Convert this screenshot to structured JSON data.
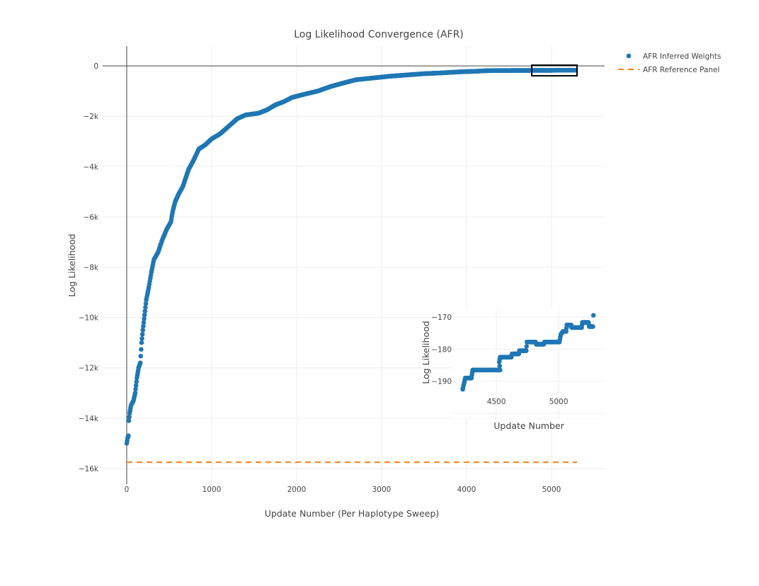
{
  "chart_data": [
    {
      "type": "scatter",
      "title": "Log Likelihood Convergence (AFR)",
      "xlabel": "Update Number (Per Haplotype Sweep)",
      "ylabel": "Log Likelihood",
      "xlim": [
        -283,
        5625
      ],
      "ylim": [
        -16620,
        790
      ],
      "xticks": [
        0,
        1000,
        2000,
        3000,
        4000,
        5000
      ],
      "xtick_labels": [
        "0",
        "1000",
        "2000",
        "3000",
        "4000",
        "5000"
      ],
      "yticks": [
        0,
        -2000,
        -4000,
        -6000,
        -8000,
        -10000,
        -12000,
        -14000,
        -16000
      ],
      "ytick_labels": [
        "0",
        "−2k",
        "−4k",
        "−6k",
        "−8k",
        "−10k",
        "−12k",
        "−14k",
        "−16k"
      ],
      "grid": true,
      "legend_position": "top-right",
      "series": [
        {
          "name": "AFR Inferred Weights",
          "mode": "markers",
          "color": "#1f77b4",
          "points": [
            [
              0,
              -15000
            ],
            [
              10,
              -14800
            ],
            [
              20,
              -14700
            ],
            [
              25,
              -14100
            ],
            [
              35,
              -13800
            ],
            [
              50,
              -13500
            ],
            [
              80,
              -13300
            ],
            [
              100,
              -13000
            ],
            [
              120,
              -12400
            ],
            [
              140,
              -12000
            ],
            [
              160,
              -11800
            ],
            [
              175,
              -11000
            ],
            [
              190,
              -10500
            ],
            [
              210,
              -9900
            ],
            [
              230,
              -9300
            ],
            [
              260,
              -8800
            ],
            [
              290,
              -8200
            ],
            [
              320,
              -7700
            ],
            [
              370,
              -7400
            ],
            [
              420,
              -6900
            ],
            [
              470,
              -6500
            ],
            [
              520,
              -6200
            ],
            [
              540,
              -5800
            ],
            [
              570,
              -5400
            ],
            [
              610,
              -5100
            ],
            [
              660,
              -4800
            ],
            [
              700,
              -4400
            ],
            [
              730,
              -4100
            ],
            [
              780,
              -3800
            ],
            [
              850,
              -3300
            ],
            [
              920,
              -3150
            ],
            [
              1000,
              -2900
            ],
            [
              1100,
              -2700
            ],
            [
              1200,
              -2400
            ],
            [
              1300,
              -2100
            ],
            [
              1400,
              -1950
            ],
            [
              1550,
              -1880
            ],
            [
              1650,
              -1750
            ],
            [
              1750,
              -1550
            ],
            [
              1850,
              -1420
            ],
            [
              1950,
              -1250
            ],
            [
              2100,
              -1120
            ],
            [
              2250,
              -1000
            ],
            [
              2400,
              -820
            ],
            [
              2550,
              -680
            ],
            [
              2700,
              -550
            ],
            [
              2900,
              -480
            ],
            [
              3100,
              -410
            ],
            [
              3300,
              -360
            ],
            [
              3500,
              -310
            ],
            [
              3700,
              -280
            ],
            [
              3900,
              -240
            ],
            [
              4100,
              -215
            ],
            [
              4230,
              -192.5
            ],
            [
              4250,
              -189
            ],
            [
              4300,
              -189
            ],
            [
              4310,
              -186.5
            ],
            [
              4530,
              -186.5
            ],
            [
              4523,
              -184
            ],
            [
              4530,
              -182.5
            ],
            [
              4620,
              -182.5
            ],
            [
              4625,
              -181.5
            ],
            [
              4680,
              -181.5
            ],
            [
              4685,
              -180.5
            ],
            [
              4740,
              -180.5
            ],
            [
              4745,
              -177.8
            ],
            [
              4815,
              -177.8
            ],
            [
              4820,
              -178.5
            ],
            [
              4880,
              -178.5
            ],
            [
              4885,
              -177.8
            ],
            [
              5006,
              -177.8
            ],
            [
              5017,
              -175.5
            ],
            [
              5034,
              -174.5
            ],
            [
              5060,
              -174.5
            ],
            [
              5065,
              -172.5
            ],
            [
              5100,
              -172.5
            ],
            [
              5105,
              -173.3
            ],
            [
              5185,
              -173.3
            ],
            [
              5190,
              -171.7
            ],
            [
              5240,
              -171.7
            ],
            [
              5245,
              -173
            ],
            [
              5275,
              -173
            ],
            [
              5279,
              -169.5
            ]
          ]
        },
        {
          "name": "AFR Reference Panel",
          "mode": "lines",
          "dash": "dash",
          "color": "#ff7f0e",
          "points": [
            [
              0,
              -15750
            ],
            [
              5300,
              -15750
            ]
          ]
        }
      ],
      "highlight_box": {
        "x": [
          4767,
          5300
        ],
        "y": [
          -394,
          28
        ]
      }
    },
    {
      "type": "scatter",
      "title": "",
      "xlabel": "Update Number",
      "ylabel": "Log Likelihood",
      "xlim": [
        4153,
        5369
      ],
      "ylim": [
        -201.5,
        -167.4
      ],
      "xticks": [
        4500,
        5000
      ],
      "xtick_labels": [
        "4500",
        "5000"
      ],
      "yticks": [
        -170,
        -180,
        -190,
        -200
      ],
      "ytick_labels": [
        "−170",
        "−180",
        "−190",
        ""
      ],
      "grid": true,
      "series_ref": "AFR Inferred Weights"
    }
  ]
}
